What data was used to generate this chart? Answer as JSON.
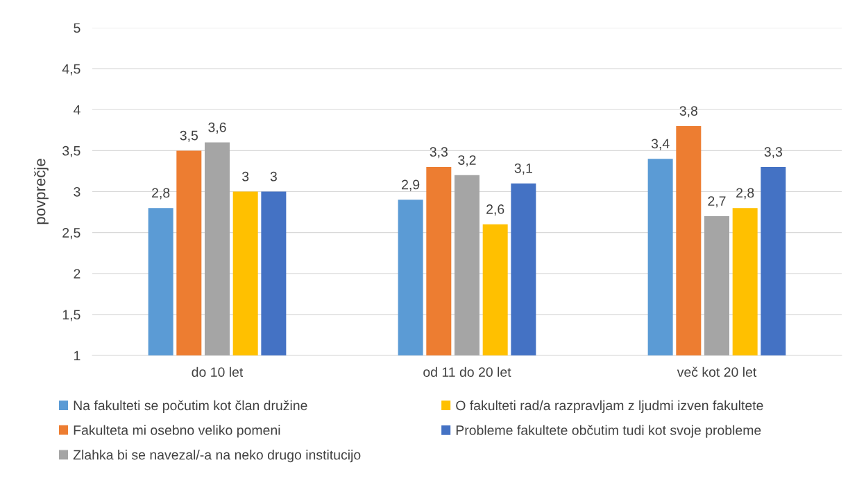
{
  "chart_data": {
    "type": "bar",
    "ylabel": "povprečje",
    "categories": [
      "do 10 let",
      "od 11 do 20 let",
      "več kot 20 let"
    ],
    "series": [
      {
        "name": "Na fakulteti se počutim kot član družine",
        "color": "#5b9bd5",
        "values": [
          2.8,
          2.9,
          3.4
        ],
        "value_labels": [
          "2,8",
          "2,9",
          "3,4"
        ]
      },
      {
        "name": "Fakulteta mi osebno veliko pomeni",
        "color": "#ed7d31",
        "values": [
          3.5,
          3.3,
          3.8
        ],
        "value_labels": [
          "3,5",
          "3,3",
          "3,8"
        ]
      },
      {
        "name": "Zlahka bi se navezal/-a na neko drugo institucijo",
        "color": "#a5a5a5",
        "values": [
          3.6,
          3.2,
          2.7
        ],
        "value_labels": [
          "3,6",
          "3,2",
          "2,7"
        ]
      },
      {
        "name": "O fakulteti rad/a razpravljam z ljudmi izven fakultete",
        "color": "#ffc000",
        "values": [
          3,
          2.6,
          2.8
        ],
        "value_labels": [
          "3",
          "2,6",
          "2,8"
        ]
      },
      {
        "name": "Probleme fakultete občutim tudi kot svoje probleme",
        "color": "#4472c4",
        "values": [
          3,
          3.1,
          3.3
        ],
        "value_labels": [
          "3",
          "3,1",
          "3,3"
        ]
      }
    ],
    "ylim": [
      1,
      5
    ],
    "yticks": [
      1,
      {
        "value": 1.5,
        "label": "1,5"
      },
      2,
      {
        "value": 2.5,
        "label": "2,5"
      },
      3,
      {
        "value": 3.5,
        "label": "3,5"
      },
      4,
      {
        "value": 4.5,
        "label": "4,5"
      },
      5
    ],
    "grid": "y",
    "legend": "bottom"
  }
}
